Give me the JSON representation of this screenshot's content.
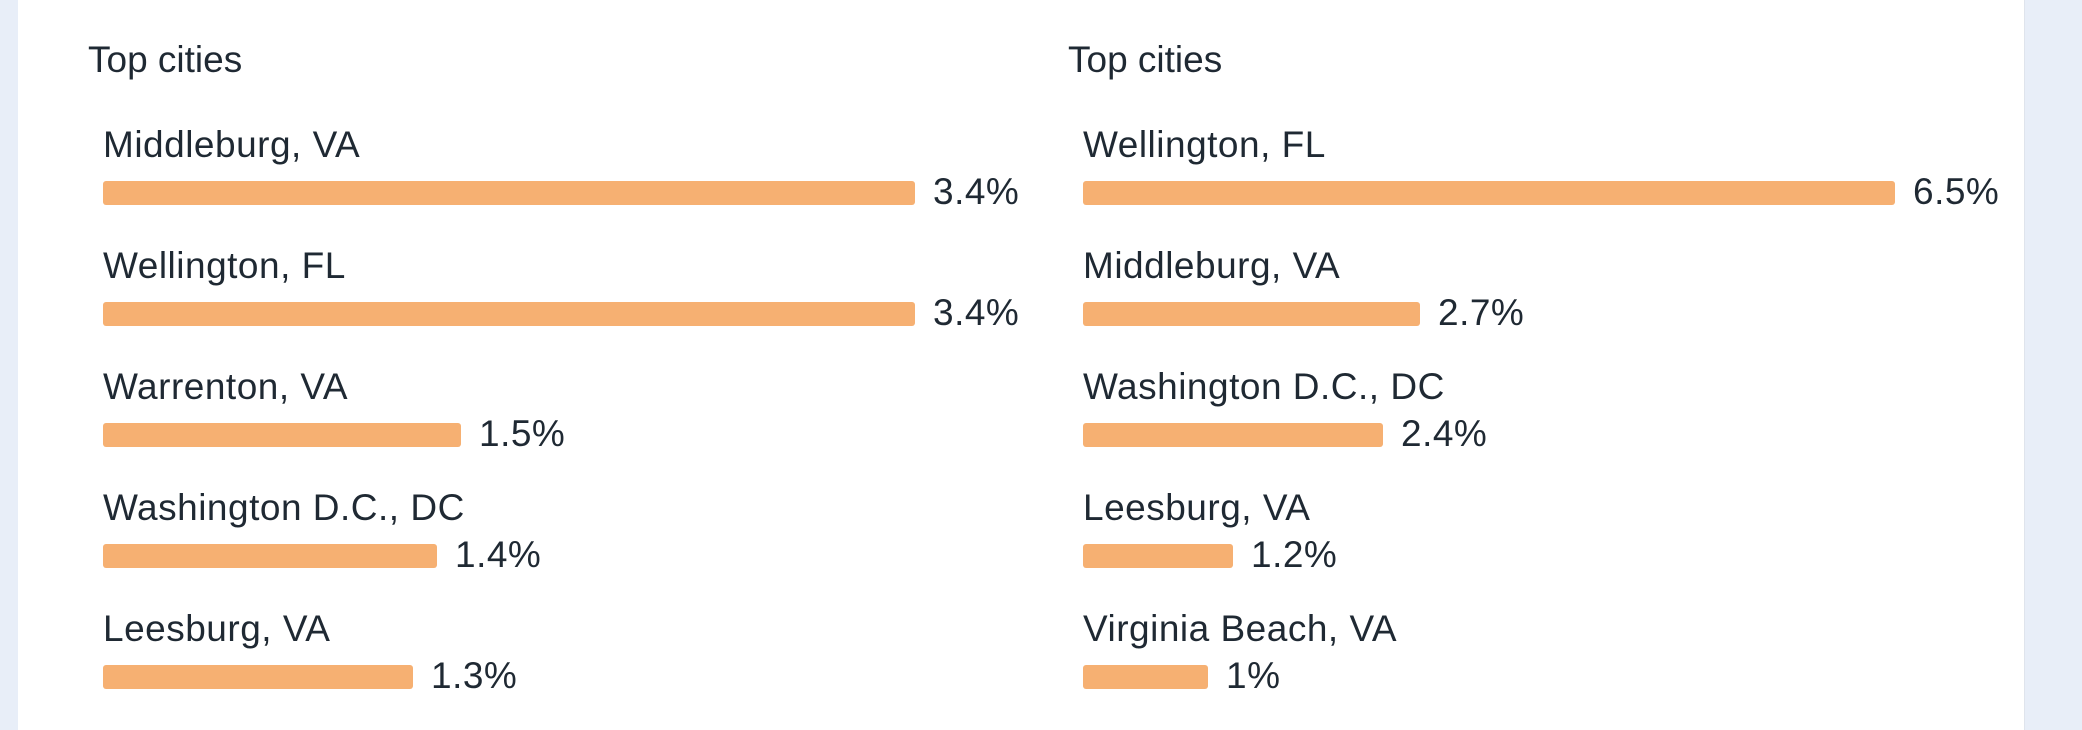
{
  "chart_data": [
    {
      "type": "bar",
      "orientation": "horizontal",
      "title": "Top cities",
      "categories": [
        "Middleburg, VA",
        "Wellington, FL",
        "Warrenton, VA",
        "Washington D.C., DC",
        "Leesburg, VA"
      ],
      "values": [
        3.4,
        3.4,
        1.5,
        1.4,
        1.3
      ],
      "value_labels": [
        "3.4%",
        "3.4%",
        "1.5%",
        "1.4%",
        "1.3%"
      ],
      "unit": "%",
      "bar_color": "#f6b072",
      "grid": false
    },
    {
      "type": "bar",
      "orientation": "horizontal",
      "title": "Top cities",
      "categories": [
        "Wellington, FL",
        "Middleburg, VA",
        "Washington D.C., DC",
        "Leesburg, VA",
        "Virginia Beach, VA"
      ],
      "values": [
        6.5,
        2.7,
        2.4,
        1.2,
        1.0
      ],
      "value_labels": [
        "6.5%",
        "2.7%",
        "2.4%",
        "1.2%",
        "1%"
      ],
      "unit": "%",
      "bar_color": "#f6b072",
      "grid": false
    }
  ]
}
